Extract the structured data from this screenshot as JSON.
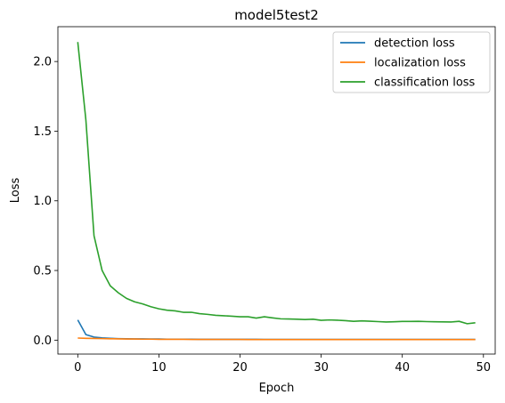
{
  "chart_data": {
    "type": "line",
    "title": "model5test2",
    "xlabel": "Epoch",
    "ylabel": "Loss",
    "xlim": [
      -2.45,
      51.45
    ],
    "ylim": [
      -0.1,
      2.25
    ],
    "x_ticks": [
      "0",
      "10",
      "20",
      "30",
      "40",
      "50"
    ],
    "x_tick_values": [
      0,
      10,
      20,
      30,
      40,
      50
    ],
    "y_ticks": [
      "0.0",
      "0.5",
      "1.0",
      "1.5",
      "2.0"
    ],
    "y_tick_values": [
      0,
      0.5,
      1.0,
      1.5,
      2.0
    ],
    "grid": false,
    "legend_position": "top-right",
    "x": [
      0,
      1,
      2,
      3,
      4,
      5,
      6,
      7,
      8,
      9,
      10,
      11,
      12,
      13,
      14,
      15,
      16,
      17,
      18,
      19,
      20,
      21,
      22,
      23,
      24,
      25,
      26,
      27,
      28,
      29,
      30,
      31,
      32,
      33,
      34,
      35,
      36,
      37,
      38,
      39,
      40,
      41,
      42,
      43,
      44,
      45,
      46,
      47,
      48,
      49
    ],
    "series": [
      {
        "name": "detection loss",
        "color": "#1f77b4",
        "values": [
          0.145,
          0.04,
          0.022,
          0.016,
          0.013,
          0.011,
          0.01,
          0.009,
          0.009,
          0.008,
          0.008,
          0.007,
          0.007,
          0.007,
          0.007,
          0.006,
          0.006,
          0.006,
          0.006,
          0.006,
          0.006,
          0.006,
          0.006,
          0.005,
          0.005,
          0.005,
          0.005,
          0.005,
          0.005,
          0.005,
          0.005,
          0.005,
          0.005,
          0.005,
          0.005,
          0.005,
          0.005,
          0.005,
          0.005,
          0.005,
          0.005,
          0.005,
          0.005,
          0.005,
          0.005,
          0.005,
          0.005,
          0.005,
          0.005,
          0.005
        ]
      },
      {
        "name": "localization loss",
        "color": "#ff7f0e",
        "values": [
          0.015,
          0.013,
          0.012,
          0.011,
          0.01,
          0.009,
          0.008,
          0.008,
          0.007,
          0.007,
          0.006,
          0.006,
          0.006,
          0.006,
          0.005,
          0.005,
          0.005,
          0.005,
          0.005,
          0.005,
          0.005,
          0.004,
          0.004,
          0.004,
          0.004,
          0.004,
          0.004,
          0.004,
          0.004,
          0.004,
          0.004,
          0.004,
          0.004,
          0.004,
          0.004,
          0.004,
          0.004,
          0.004,
          0.004,
          0.004,
          0.004,
          0.004,
          0.004,
          0.004,
          0.004,
          0.004,
          0.004,
          0.004,
          0.004,
          0.004
        ]
      },
      {
        "name": "classification loss",
        "color": "#2ca02c",
        "values": [
          2.14,
          1.58,
          0.75,
          0.5,
          0.39,
          0.34,
          0.3,
          0.275,
          0.26,
          0.24,
          0.225,
          0.215,
          0.21,
          0.2,
          0.2,
          0.19,
          0.185,
          0.178,
          0.175,
          0.172,
          0.168,
          0.168,
          0.158,
          0.168,
          0.16,
          0.153,
          0.152,
          0.15,
          0.148,
          0.15,
          0.142,
          0.145,
          0.143,
          0.14,
          0.135,
          0.138,
          0.136,
          0.133,
          0.13,
          0.132,
          0.134,
          0.134,
          0.135,
          0.133,
          0.132,
          0.131,
          0.13,
          0.135,
          0.118,
          0.125
        ]
      }
    ]
  }
}
